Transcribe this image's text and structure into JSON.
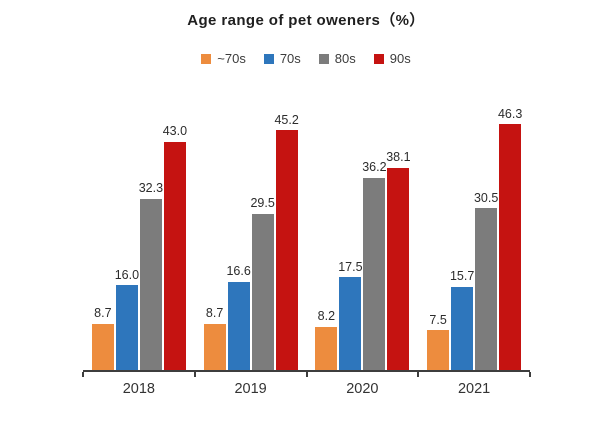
{
  "chart_data": {
    "type": "bar",
    "title": "Age range of pet oweners（%）",
    "categories": [
      "2018",
      "2019",
      "2020",
      "2021"
    ],
    "series": [
      {
        "name": "~70s",
        "color": "#ED8C3E",
        "values": [
          8.7,
          8.7,
          8.2,
          7.5
        ],
        "labels": [
          "8.7",
          "8.7",
          "8.2",
          "7.5"
        ]
      },
      {
        "name": "70s",
        "color": "#2E76BC",
        "values": [
          16.0,
          16.6,
          17.5,
          15.7
        ],
        "labels": [
          "16.0",
          "16.6",
          "17.5",
          "15.7"
        ]
      },
      {
        "name": "80s",
        "color": "#7C7C7C",
        "values": [
          32.3,
          29.5,
          36.2,
          30.5
        ],
        "labels": [
          "32.3",
          "29.5",
          "36.2",
          "30.5"
        ]
      },
      {
        "name": "90s",
        "color": "#C51311",
        "values": [
          43.0,
          45.2,
          38.1,
          46.3
        ],
        "labels": [
          "43.0",
          "45.2",
          "38.1",
          "46.3"
        ]
      }
    ],
    "ylim": [
      0,
      49
    ],
    "grid": false,
    "legend_position": "top",
    "value_labels_shown": true,
    "axis_color": "#3d3d3d"
  }
}
